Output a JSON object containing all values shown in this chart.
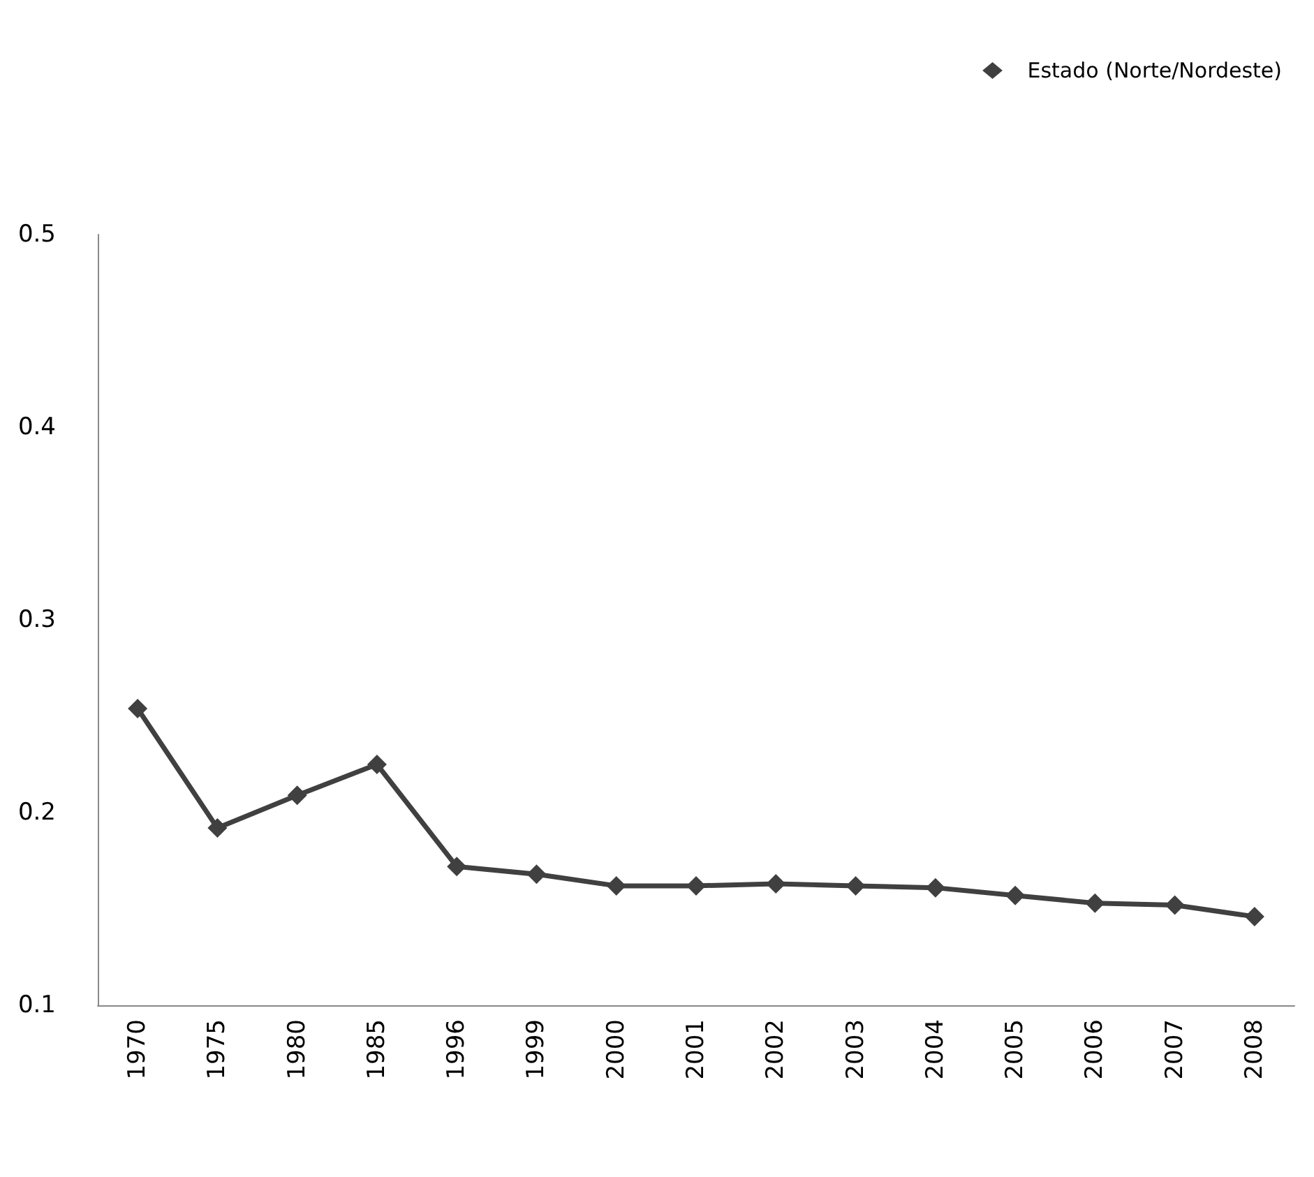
{
  "chart_data": {
    "type": "line",
    "categories": [
      "1970",
      "1975",
      "1980",
      "1985",
      "1996",
      "1999",
      "2000",
      "2001",
      "2002",
      "2003",
      "2004",
      "2005",
      "2006",
      "2007",
      "2008"
    ],
    "series": [
      {
        "name": "Estado (Norte/Nordeste)",
        "color": "#404040",
        "values": [
          0.254,
          0.192,
          0.209,
          0.225,
          0.172,
          0.168,
          0.162,
          0.162,
          0.163,
          0.162,
          0.161,
          0.157,
          0.153,
          0.152,
          0.146
        ]
      }
    ],
    "ylim": [
      0.1,
      0.5
    ],
    "yticks": [
      0.1,
      0.2,
      0.3,
      0.4,
      0.5
    ],
    "grid": false,
    "legend": "top right",
    "marker": "diamond",
    "line_style": "solid"
  }
}
